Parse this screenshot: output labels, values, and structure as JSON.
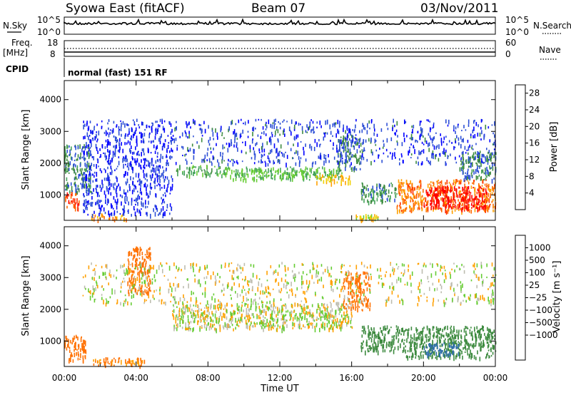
{
  "header": {
    "station": "Syowa East (fitACF)",
    "beam": "Beam 07",
    "date": "03/Nov/2011"
  },
  "panels": {
    "nsky_label": "N.Sky",
    "nsky_ticks": [
      "10^5",
      "10^0"
    ],
    "nsearch_label": "N.Search",
    "nsearch_ticks": [
      "10^5",
      "10^0"
    ],
    "freq_label": "Freq.",
    "freq_unit": "[MHz]",
    "freq_ticks": [
      "18",
      "8"
    ],
    "nave_label": "Nave",
    "nave_ticks": [
      "60",
      "0"
    ],
    "cpid_label": "CPID",
    "cpid_value": "normal (fast) 151 RF"
  },
  "colors": {
    "power": [
      "#0000ff",
      "#2d4fd6",
      "#3d8a3f",
      "#44a35a",
      "#66cc33",
      "#f0d000",
      "#ffa000",
      "#ff6a00",
      "#ff3000",
      "#ff0000"
    ],
    "velocity": [
      "#2040c0",
      "#2f6ea8",
      "#3d8a3f",
      "#66cc33",
      "#bdbdb0",
      "#bdbdb0",
      "#ffa000",
      "#ff7000",
      "#ff3000",
      "#ff0000"
    ]
  },
  "chart_data": [
    {
      "type": "heatmap",
      "name": "power",
      "ylabel": "Slant Range [km]",
      "yticks": [
        "1000",
        "2000",
        "3000",
        "4000"
      ],
      "ylim": [
        200,
        4600
      ],
      "xlim": [
        0,
        24
      ],
      "colorbar_label": "Power [dB]",
      "colorbar_ticks": [
        "4",
        "8",
        "12",
        "16",
        "20",
        "24",
        "28"
      ],
      "colorbar_range": [
        0,
        30
      ],
      "regions": [
        {
          "t": [
            0.0,
            0.8
          ],
          "r": [
            600,
            1100
          ],
          "v": 25
        },
        {
          "t": [
            0.0,
            1.5
          ],
          "r": [
            1100,
            2600
          ],
          "v": 7
        },
        {
          "t": [
            1.5,
            3.5
          ],
          "r": [
            250,
            420
          ],
          "v": 20
        },
        {
          "t": [
            1.0,
            6.0
          ],
          "r": [
            400,
            3400
          ],
          "v": 3
        },
        {
          "t": [
            6.2,
            9.0
          ],
          "r": [
            1650,
            1950
          ],
          "v": 11
        },
        {
          "t": [
            9.0,
            15.5
          ],
          "r": [
            1500,
            1900
          ],
          "v": 12
        },
        {
          "t": [
            14.0,
            16.0
          ],
          "r": [
            1400,
            1650
          ],
          "v": 18
        },
        {
          "t": [
            15.2,
            16.5
          ],
          "r": [
            1800,
            2900
          ],
          "v": 6
        },
        {
          "t": [
            16.5,
            18.5
          ],
          "r": [
            800,
            1400
          ],
          "v": 8
        },
        {
          "t": [
            16.2,
            17.5
          ],
          "r": [
            250,
            400
          ],
          "v": 16
        },
        {
          "t": [
            18.5,
            24.0
          ],
          "r": [
            500,
            1500
          ],
          "v": 22
        },
        {
          "t": [
            20.0,
            23.5
          ],
          "r": [
            600,
            1300
          ],
          "v": 29
        },
        {
          "t": [
            6.0,
            24.0
          ],
          "r": [
            2000,
            3400
          ],
          "v": 4
        },
        {
          "t": [
            22.0,
            24.0
          ],
          "r": [
            1500,
            2400
          ],
          "v": 7
        }
      ]
    },
    {
      "type": "heatmap",
      "name": "velocity",
      "ylabel": "Slant Range [km]",
      "yticks": [
        "1000",
        "2000",
        "3000",
        "4000"
      ],
      "ylim": [
        200,
        4600
      ],
      "xlim": [
        0,
        24
      ],
      "xticks": [
        "00:00",
        "04:00",
        "08:00",
        "12:00",
        "16:00",
        "20:00",
        "00:00"
      ],
      "xlabel": "Time UT",
      "colorbar_label": "Velocity [m s⁻¹]",
      "colorbar_ticks": [
        "1000",
        "500",
        "100",
        "25",
        "−25",
        "−100",
        "−500",
        "−1000"
      ],
      "regions": [
        {
          "t": [
            0.0,
            1.2
          ],
          "r": [
            400,
            1200
          ],
          "v": -300
        },
        {
          "t": [
            1.5,
            4.5
          ],
          "r": [
            250,
            500
          ],
          "v": -150
        },
        {
          "t": [
            3.5,
            4.8
          ],
          "r": [
            2500,
            4000
          ],
          "v": -200
        },
        {
          "t": [
            6.0,
            16.0
          ],
          "r": [
            1400,
            2200
          ],
          "v": 0
        },
        {
          "t": [
            15.5,
            17.0
          ],
          "r": [
            2000,
            3200
          ],
          "v": -200
        },
        {
          "t": [
            16.5,
            19.0
          ],
          "r": [
            700,
            1500
          ],
          "v": 200
        },
        {
          "t": [
            19.0,
            24.0
          ],
          "r": [
            500,
            1500
          ],
          "v": 300
        },
        {
          "t": [
            20.0,
            22.0
          ],
          "r": [
            600,
            1000
          ],
          "v": 800
        },
        {
          "t": [
            1.0,
            24.0
          ],
          "r": [
            2200,
            3500
          ],
          "v": 0
        }
      ]
    }
  ]
}
